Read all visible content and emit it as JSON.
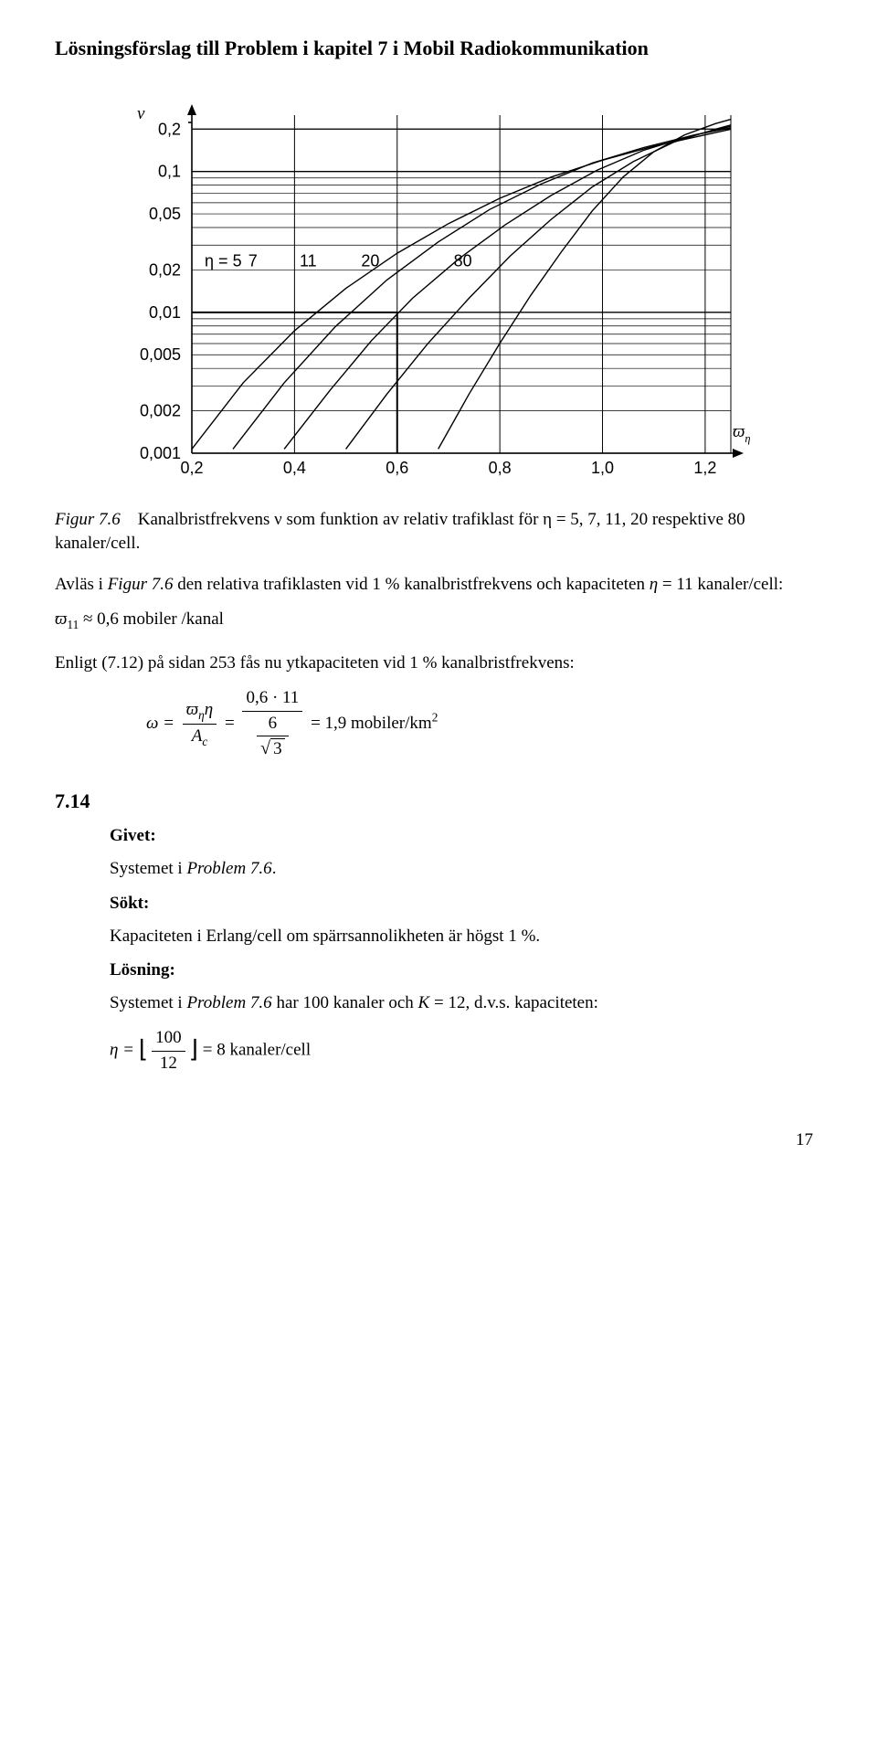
{
  "page_title": "Lösningsförslag till Problem i kapitel 7 i Mobil Radiokommunikation",
  "chart": {
    "type": "line",
    "y_axis_label": "ν",
    "x_axis_label": "ϖ_η",
    "y_ticks": [
      "0,2",
      "0,1",
      "0,05",
      "0,02",
      "0,01",
      "0,005",
      "0,002",
      "0,001"
    ],
    "x_ticks": [
      "0,2",
      "0,4",
      "0,6",
      "0,8",
      "1,0",
      "1,2"
    ],
    "x_min": 0.2,
    "x_max": 1.25,
    "y_min_log": -3,
    "y_max_log": -0.6,
    "curve_labels": [
      "η = 5",
      "7",
      "11",
      "20",
      "80"
    ],
    "curve_label_color": "#000000",
    "line_color": "#000000",
    "line_width": 1.4,
    "grid_color": "#000000",
    "background_color": "#ffffff",
    "font_size_ticks": 18,
    "font_size_axis_label": 19,
    "marker_line_width": 2.0,
    "marker": {
      "x": 0.6,
      "y_log": -2
    },
    "curves": {
      "eta5": [
        [
          0.2,
          -2.97
        ],
        [
          0.3,
          -2.5
        ],
        [
          0.4,
          -2.13
        ],
        [
          0.5,
          -1.83
        ],
        [
          0.6,
          -1.58
        ],
        [
          0.7,
          -1.37
        ],
        [
          0.8,
          -1.19
        ],
        [
          0.9,
          -1.04
        ],
        [
          1.0,
          -0.92
        ],
        [
          1.1,
          -0.82
        ],
        [
          1.2,
          -0.74
        ],
        [
          1.25,
          -0.7
        ]
      ],
      "eta7": [
        [
          0.28,
          -2.97
        ],
        [
          0.38,
          -2.5
        ],
        [
          0.48,
          -2.1
        ],
        [
          0.58,
          -1.77
        ],
        [
          0.68,
          -1.5
        ],
        [
          0.78,
          -1.27
        ],
        [
          0.88,
          -1.09
        ],
        [
          0.98,
          -0.94
        ],
        [
          1.08,
          -0.83
        ],
        [
          1.18,
          -0.74
        ],
        [
          1.25,
          -0.69
        ]
      ],
      "eta11": [
        [
          0.38,
          -2.97
        ],
        [
          0.47,
          -2.55
        ],
        [
          0.55,
          -2.2
        ],
        [
          0.63,
          -1.9
        ],
        [
          0.72,
          -1.62
        ],
        [
          0.81,
          -1.38
        ],
        [
          0.9,
          -1.17
        ],
        [
          0.99,
          -0.99
        ],
        [
          1.08,
          -0.85
        ],
        [
          1.17,
          -0.75
        ],
        [
          1.25,
          -0.68
        ]
      ],
      "eta20": [
        [
          0.5,
          -2.97
        ],
        [
          0.58,
          -2.58
        ],
        [
          0.66,
          -2.22
        ],
        [
          0.74,
          -1.9
        ],
        [
          0.82,
          -1.6
        ],
        [
          0.9,
          -1.34
        ],
        [
          0.98,
          -1.11
        ],
        [
          1.06,
          -0.93
        ],
        [
          1.14,
          -0.79
        ],
        [
          1.22,
          -0.7
        ],
        [
          1.25,
          -0.67
        ]
      ],
      "eta80": [
        [
          0.68,
          -2.97
        ],
        [
          0.74,
          -2.58
        ],
        [
          0.8,
          -2.22
        ],
        [
          0.86,
          -1.88
        ],
        [
          0.92,
          -1.57
        ],
        [
          0.98,
          -1.28
        ],
        [
          1.04,
          -1.04
        ],
        [
          1.1,
          -0.86
        ],
        [
          1.16,
          -0.74
        ],
        [
          1.22,
          -0.66
        ],
        [
          1.25,
          -0.63
        ]
      ]
    }
  },
  "caption": {
    "figref": "Figur 7.6",
    "text_a": "Kanalbristfrekvens ",
    "sym_nu": "ν",
    "text_b": " som funktion av relativ trafiklast för ",
    "sym_eta": "η",
    "text_c": " = 5, 7, 11, 20 respektive 80 kanaler/cell."
  },
  "p1": {
    "a": "Avläs i ",
    "figref": "Figur 7.6",
    "b": " den relativa trafiklasten vid 1 % kanalbristfrekvens och kapaciteten ",
    "eta": "η",
    "c": " = 11 kanaler/cell:"
  },
  "eq1": {
    "sym": "ϖ",
    "sub": "11",
    "approx": " ≈ 0,6 mobiler /kanal"
  },
  "p2": "Enligt (7.12) på sidan 253 fås nu ytkapaciteten vid 1 % kanalbristfrekvens:",
  "eq2": {
    "lhs": "ω = ",
    "num1_a": "ϖ",
    "num1_sub": "η",
    "num1_b": "η",
    "den1": "A",
    "den1_sub": "c",
    "mid": " = ",
    "num2": "0,6 · 11",
    "den2_num": "6",
    "den2_rad": "3",
    "rhs": " = 1,9 mobiler/km",
    "exp": "2"
  },
  "sec": "7.14",
  "givet_label": "Givet:",
  "givet_text_a": "Systemet i ",
  "givet_text_b": "Problem 7.6",
  "givet_text_c": ".",
  "sokt_label": "Sökt:",
  "sokt_text": "Kapaciteten i Erlang/cell om spärrsannolikheten är högst 1 %.",
  "losn_label": "Lösning:",
  "losn_text_a": "Systemet i ",
  "losn_text_b": "Problem 7.6",
  "losn_text_c": " har 100 kanaler och ",
  "losn_K": "K",
  "losn_text_d": " = 12, d.v.s. kapaciteten:",
  "eq3": {
    "lhs": "η = ",
    "num": "100",
    "den": "12",
    "rhs": " = 8 kanaler/cell"
  },
  "pagenum": "17"
}
